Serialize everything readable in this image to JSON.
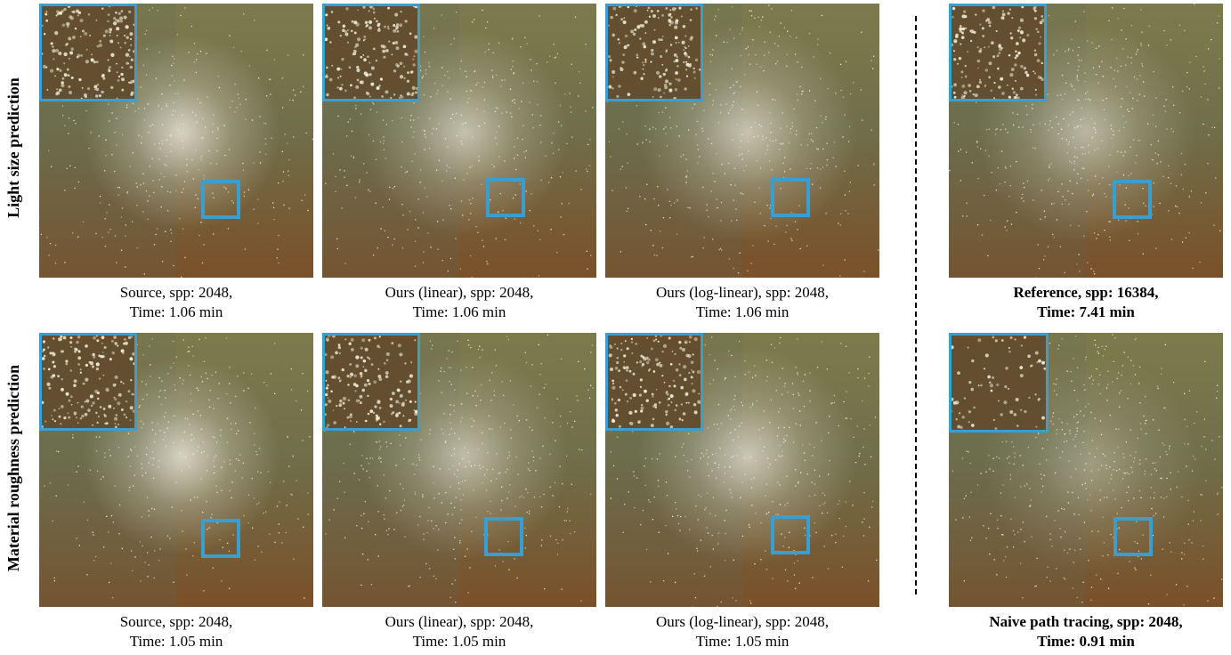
{
  "figure": {
    "row_labels": [
      "Light size prediction",
      "Material roughness prediction"
    ],
    "rows": [
      {
        "panels": [
          {
            "caption_line1": "Source, spp: 2048,",
            "caption_line2": "Time: 1.06 min",
            "bold": false
          },
          {
            "caption_line1": "Ours (linear), spp: 2048,",
            "caption_line2": "Time: 1.06 min",
            "bold": false
          },
          {
            "caption_line1": "Ours (log-linear), spp: 2048,",
            "caption_line2": "Time: 1.06 min",
            "bold": false
          },
          {
            "caption_line1": "Reference, spp: 16384,",
            "caption_line2": "Time: 7.41 min",
            "bold": true
          }
        ]
      },
      {
        "panels": [
          {
            "caption_line1": "Source, spp: 2048,",
            "caption_line2": "Time: 1.05 min",
            "bold": false
          },
          {
            "caption_line1": "Ours (linear), spp: 2048,",
            "caption_line2": "Time: 1.05 min",
            "bold": false
          },
          {
            "caption_line1": "Ours (log-linear), spp: 2048,",
            "caption_line2": "Time: 1.05 min",
            "bold": false
          },
          {
            "caption_line1": "Naive path tracing, spp: 2048,",
            "caption_line2": "Time: 0.91 min",
            "bold": true
          }
        ]
      }
    ],
    "colors": {
      "highlight_box": "#3a9fd0",
      "surface_top": "#7d7a4c",
      "surface_bottom": "#7a5029",
      "glow": "#e8e4d6"
    }
  }
}
